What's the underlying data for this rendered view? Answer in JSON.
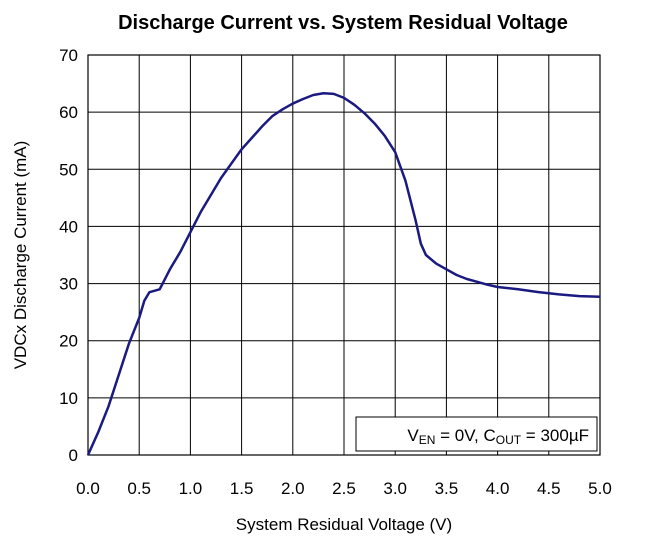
{
  "chart_data": {
    "type": "line",
    "title": "Discharge Current vs. System Residual Voltage",
    "x_label": "System Residual Voltage (V)",
    "y_label": "VDCx Discharge Current (mA)",
    "annotation": [
      {
        "text": "V"
      },
      {
        "text": "EN",
        "sub": true
      },
      {
        "text": " = 0V, C"
      },
      {
        "text": "OUT",
        "sub": true
      },
      {
        "text": " = 300µF"
      }
    ],
    "xlim": [
      0,
      5
    ],
    "ylim": [
      0,
      70
    ],
    "xticks": [
      {
        "value": 0,
        "label": "0.0"
      },
      0.5,
      {
        "value": 1,
        "label": "1.0"
      },
      1.5,
      {
        "value": 2,
        "label": "2.0"
      },
      2.5,
      {
        "value": 3,
        "label": "3.0"
      },
      3.5,
      {
        "value": 4,
        "label": "4.0"
      },
      4.5,
      {
        "value": 5,
        "label": "5.0"
      }
    ],
    "yticks": [
      0,
      10,
      20,
      30,
      40,
      50,
      60,
      70
    ],
    "grid": true,
    "series": [
      {
        "color": "#1a1a80",
        "x": [
          0,
          0.1,
          0.2,
          0.3,
          0.4,
          0.5,
          0.55,
          0.6,
          0.7,
          0.8,
          0.9,
          1.0,
          1.1,
          1.2,
          1.3,
          1.4,
          1.5,
          1.6,
          1.7,
          1.8,
          1.9,
          2.0,
          2.1,
          2.2,
          2.3,
          2.4,
          2.5,
          2.6,
          2.7,
          2.8,
          2.9,
          3.0,
          3.1,
          3.2,
          3.25,
          3.3,
          3.4,
          3.5,
          3.6,
          3.7,
          3.8,
          3.9,
          4.0,
          4.2,
          4.4,
          4.6,
          4.8,
          5.0
        ],
        "values": [
          0,
          4,
          8.5,
          14,
          19.5,
          24,
          27,
          28.5,
          29,
          32.5,
          35.5,
          39,
          42.5,
          45.5,
          48.5,
          51,
          53.5,
          55.5,
          57.5,
          59.3,
          60.5,
          61.5,
          62.3,
          63,
          63.3,
          63.2,
          62.5,
          61.3,
          59.8,
          58,
          55.8,
          53,
          48,
          41,
          37,
          35,
          33.5,
          32.5,
          31.5,
          30.8,
          30.3,
          29.8,
          29.4,
          29,
          28.5,
          28.1,
          27.8,
          27.7
        ]
      }
    ]
  }
}
